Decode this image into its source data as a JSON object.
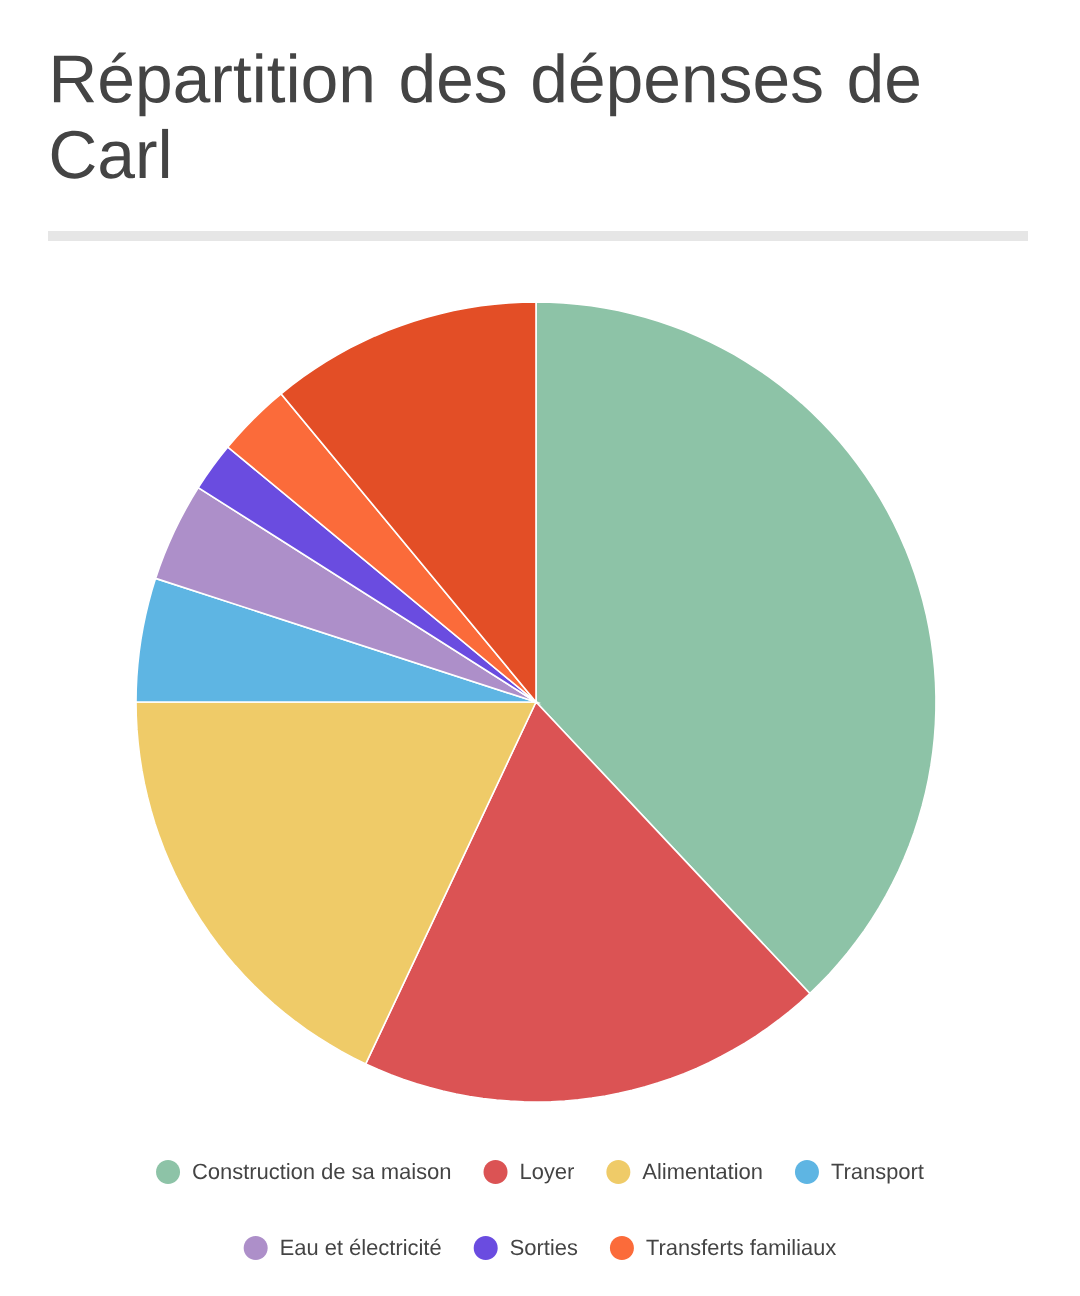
{
  "chart_data": {
    "type": "pie",
    "title": "Répartition des dépenses de Carl",
    "categories": [
      "Construction de sa maison",
      "Loyer",
      "Alimentation",
      "Transport",
      "Eau et électricité",
      "Sorties",
      "Transferts familiaux",
      null
    ],
    "values": [
      38,
      19,
      18,
      5,
      4,
      2,
      3,
      11
    ],
    "colors": [
      "#8dc3a7",
      "#db5354",
      "#efcb68",
      "#5eb5e3",
      "#ad8fc9",
      "#6a4ce0",
      "#fb6b3a",
      "#e34e26"
    ],
    "legend": "bottom"
  }
}
